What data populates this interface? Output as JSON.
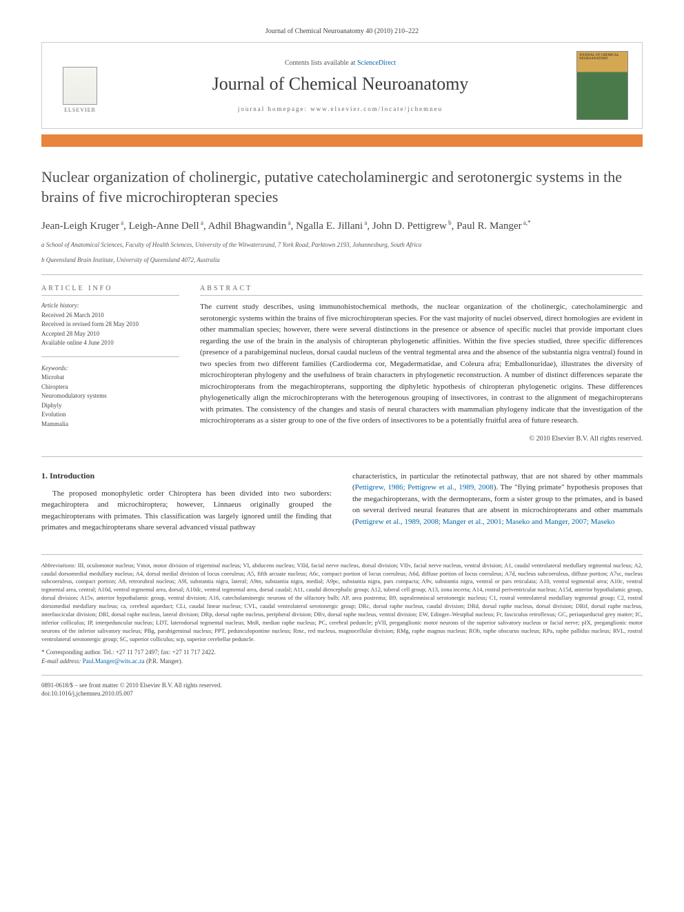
{
  "citation": "Journal of Chemical Neuroanatomy 40 (2010) 210–222",
  "header": {
    "contents_prefix": "Contents lists available at ",
    "contents_link": "ScienceDirect",
    "journal_title": "Journal of Chemical Neuroanatomy",
    "homepage_prefix": "journal homepage: ",
    "homepage_url": "www.elsevier.com/locate/jchemneu",
    "publisher": "ELSEVIER",
    "cover_label": "JOURNAL OF CHEMICAL NEUROANATOMY"
  },
  "title": "Nuclear organization of cholinergic, putative catecholaminergic and serotonergic systems in the brains of five microchiropteran species",
  "authors_html": "Jean-Leigh Kruger<sup> a</sup>, Leigh-Anne Dell<sup> a</sup>, Adhil Bhagwandin<sup> a</sup>, Ngalla E. Jillani<sup> a</sup>, John D. Pettigrew<sup> b</sup>, Paul R. Manger<sup> a,*</sup>",
  "affiliations": [
    "a School of Anatomical Sciences, Faculty of Health Sciences, University of the Witwatersrand, 7 York Road, Parktown 2193, Johannesburg, South Africa",
    "b Queensland Brain Institute, University of Queensland 4072, Australia"
  ],
  "info": {
    "head": "ARTICLE INFO",
    "history_label": "Article history:",
    "history": [
      "Received 26 March 2010",
      "Received in revised form 28 May 2010",
      "Accepted 28 May 2010",
      "Available online 4 June 2010"
    ],
    "keywords_label": "Keywords:",
    "keywords": [
      "Microbat",
      "Chiroptera",
      "Neuromodulatory systems",
      "Diphyly",
      "Evolution",
      "Mammalia"
    ]
  },
  "abstract": {
    "head": "ABSTRACT",
    "text": "The current study describes, using immunohistochemical methods, the nuclear organization of the cholinergic, catecholaminergic and serotonergic systems within the brains of five microchiropteran species. For the vast majority of nuclei observed, direct homologies are evident in other mammalian species; however, there were several distinctions in the presence or absence of specific nuclei that provide important clues regarding the use of the brain in the analysis of chiropteran phylogenetic affinities. Within the five species studied, three specific differences (presence of a parabigeminal nucleus, dorsal caudal nucleus of the ventral tegmental area and the absence of the substantia nigra ventral) found in two species from two different families (Cardioderma cor, Megadermatidae, and Coleura afra; Emballonuridae), illustrates the diversity of microchiropteran phylogeny and the usefulness of brain characters in phylogenetic reconstruction. A number of distinct differences separate the microchiropterans from the megachiropterans, supporting the diphyletic hypothesis of chiropteran phylogenetic origins. These differences phylogenetically align the microchiropterans with the heterogenous grouping of insectivores, in contrast to the alignment of megachiropterans with primates. The consistency of the changes and stasis of neural characters with mammalian phylogeny indicate that the investigation of the microchiropterans as a sister group to one of the five orders of insectivores to be a potentially fruitful area of future research.",
    "copyright": "© 2010 Elsevier B.V. All rights reserved."
  },
  "intro": {
    "head": "1. Introduction",
    "col1": "The proposed monophyletic order Chiroptera has been divided into two suborders: megachiroptera and microchiroptera; however, Linnaeus originally grouped the megachiropterans with primates. This classification was largely ignored until the finding that primates and megachiropterans share several advanced visual pathway",
    "col2_pre": "characteristics, in particular the retinotectal pathway, that are not shared by other mammals (",
    "col2_cite1": "Pettigrew, 1986; Pettigrew et al., 1989, 2008",
    "col2_mid": "). The \"flying primate\" hypothesis proposes that the megachiropterans, with the dermopterans, form a sister group to the primates, and is based on several derived neural features that are absent in microchiropterans and other mammals (",
    "col2_cite2": "Pettigrew et al., 1989, 2008; Manger et al., 2001; Maseko and Manger, 2007; Maseko"
  },
  "abbreviations": {
    "label": "Abbreviations: ",
    "text": "III, oculomotor nucleus; Vmot, motor division of trigeminal nucleus; VI, abducens nucleus; VIId, facial nerve nucleus, dorsal division; VIIv, facial nerve nucleus, ventral division; A1, caudal ventrolateral medullary tegmental nucleus; A2, caudal dorsomedial medullary nucleus; A4, dorsal medial division of locus coeruleus; A5, fifth arcuate nucleus; A6c, compact portion of locus coeruleus; A6d, diffuse portion of locus coeruleus; A7d, nucleus subcoeruleus, diffuse portion; A7sc, nucleus subcoeruleus, compact portion; A8, retrorubral nucleus; A9l, substantia nigra, lateral; A9m, substantia nigra, medial; A9pc, substantia nigra, pars compacta; A9v, substantia nigra, ventral or pars reticulata; A10, ventral tegmental area; A10c, ventral tegmental area, central; A10d, ventral tegmental area, dorsal; A10dc, ventral tegmental area, dorsal caudal; A11, caudal diencephalic group; A12, tuberal cell group; A13, zona incerta; A14, rostral periventricular nucleus; A15d, anterior hypothalamic group, dorsal division; A15v, anterior hypothalamic group, ventral division; A16, catecholaminergic neurons of the olfactory bulb; AP, area postrema; B9, supralemniscal serotonergic nucleus; C1, rostral ventrolateral medullary tegmental group; C2, rostral dorsomedial medullary nucleus; ca, cerebral aqueduct; CLi, caudal linear nucleus; CVL, caudal ventrolateral serotonergic group; DRc, dorsal raphe nucleus, caudal division; DRd, dorsal raphe nucleus, dorsal division; DRif, dorsal raphe nucleus, interfascicular division; DRl, dorsal raphe nucleus, lateral division; DRp, dorsal raphe nucleus, peripheral division; DRv, dorsal raphe nucleus, ventral division; EW, Edinger–Westphal nucleus; Fr, fasciculus retroflexus; GC, periaqueductal grey matter; IC, inferior colliculus; IP, interpeduncular nucleus; LDT, laterodorsal tegmental nucleus; MnR, median raphe nucleus; PC, cerebral peduncle; pVII, preganglionic motor neurons of the superior salivatory nucleus or facial nerve; pIX, preganglionic motor neurons of the inferior salivatory nucleus; PBg, parabigeminal nucleus; PPT, pedunculopontine nucleus; Rmc, red nucleus, magnocellular division; RMg, raphe magnus nucleus; ROb, raphe obscurus nucleus; RPa, raphe pallidus nucleus; RVL, rostral ventrolateral serotonergic group; SC, superior colliculus; scp, superior cerebellar peduncle."
  },
  "corresponding": {
    "star": "* Corresponding author. Tel.: +27 11 717 2497; fax: +27 11 717 2422.",
    "email_label": "E-mail address: ",
    "email": "Paul.Manger@wits.ac.za",
    "email_suffix": " (P.R. Manger)."
  },
  "footer": {
    "line1": "0891-0618/$ – see front matter © 2010 Elsevier B.V. All rights reserved.",
    "line2": "doi:10.1016/j.jchemneu.2010.05.007"
  },
  "colors": {
    "accent_orange": "#e8843c",
    "link": "#0066aa",
    "divider": "#bbb",
    "text": "#333"
  }
}
